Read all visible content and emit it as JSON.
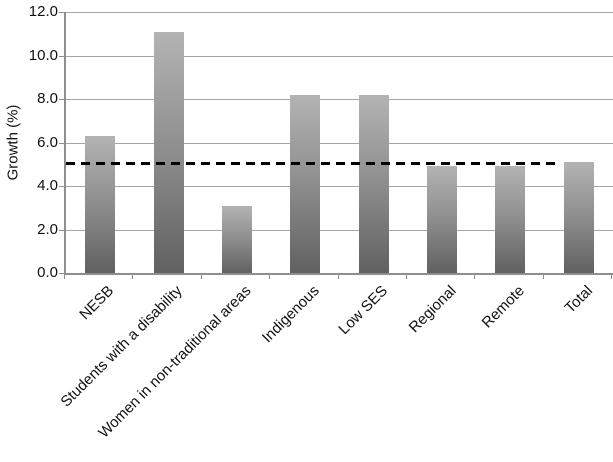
{
  "chart_data": {
    "type": "bar",
    "title": "",
    "categories": [
      "NESB",
      "Students with a disability",
      "Women in non-traditional areas",
      "Indigenous",
      "Low SES",
      "Regional",
      "Remote",
      "Total"
    ],
    "values": [
      6.3,
      11.1,
      3.1,
      8.2,
      8.2,
      4.9,
      4.9,
      5.1
    ],
    "xlabel": "",
    "ylabel": "Growth (%)",
    "ylim": [
      0,
      12
    ],
    "ytick_step": 2,
    "ytick_labels": [
      "0.0",
      "2.0",
      "4.0",
      "6.0",
      "8.0",
      "10.0",
      "12.0"
    ],
    "grid": true,
    "legend": false,
    "reference_line": {
      "value": 5.0,
      "style": "dashed",
      "color": "#000000",
      "span_fraction": 0.9
    }
  },
  "colors": {
    "bar_gradient_top": "#b3b3b3",
    "bar_gradient_bottom": "#616161",
    "gridline": "#a6a6a6",
    "axis": "#8e8e8e",
    "text": "#111111",
    "background": "#ffffff"
  }
}
